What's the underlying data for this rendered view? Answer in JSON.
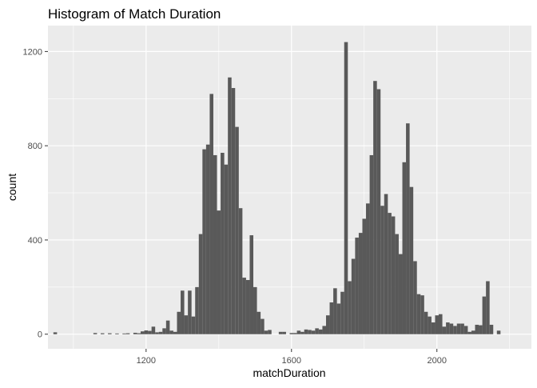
{
  "chart_data": {
    "type": "bar",
    "title": "Histogram of Match Duration",
    "xlabel": "matchDuration",
    "ylabel": "count",
    "xlim": [
      930,
      2260
    ],
    "ylim": [
      -62,
      1310
    ],
    "x_ticks": [
      1200,
      1600,
      2000
    ],
    "x_tick_labels": [
      "1200",
      "1600",
      "2000"
    ],
    "y_ticks": [
      0,
      400,
      800,
      1200
    ],
    "y_tick_labels": [
      "0",
      "400",
      "800",
      "1200"
    ],
    "grid": true,
    "bin_width": 10,
    "bar_color": "#595959",
    "panel_color": "#ebebeb",
    "bins": [
      [
        950,
        8
      ],
      [
        1060,
        5
      ],
      [
        1080,
        4
      ],
      [
        1100,
        4
      ],
      [
        1120,
        3
      ],
      [
        1140,
        3
      ],
      [
        1150,
        4
      ],
      [
        1170,
        6
      ],
      [
        1180,
        4
      ],
      [
        1190,
        12
      ],
      [
        1200,
        16
      ],
      [
        1210,
        14
      ],
      [
        1220,
        32
      ],
      [
        1230,
        8
      ],
      [
        1240,
        10
      ],
      [
        1250,
        25
      ],
      [
        1260,
        58
      ],
      [
        1270,
        15
      ],
      [
        1280,
        10
      ],
      [
        1290,
        95
      ],
      [
        1300,
        185
      ],
      [
        1310,
        80
      ],
      [
        1320,
        185
      ],
      [
        1330,
        75
      ],
      [
        1340,
        200
      ],
      [
        1350,
        425
      ],
      [
        1360,
        785
      ],
      [
        1370,
        805
      ],
      [
        1380,
        1020
      ],
      [
        1390,
        760
      ],
      [
        1400,
        525
      ],
      [
        1410,
        770
      ],
      [
        1420,
        720
      ],
      [
        1430,
        1090
      ],
      [
        1440,
        1045
      ],
      [
        1450,
        880
      ],
      [
        1460,
        535
      ],
      [
        1470,
        240
      ],
      [
        1480,
        230
      ],
      [
        1490,
        420
      ],
      [
        1500,
        200
      ],
      [
        1510,
        95
      ],
      [
        1520,
        65
      ],
      [
        1530,
        15
      ],
      [
        1540,
        18
      ],
      [
        1570,
        10
      ],
      [
        1580,
        10
      ],
      [
        1600,
        5
      ],
      [
        1610,
        5
      ],
      [
        1620,
        15
      ],
      [
        1630,
        10
      ],
      [
        1640,
        20
      ],
      [
        1650,
        18
      ],
      [
        1660,
        15
      ],
      [
        1670,
        25
      ],
      [
        1680,
        20
      ],
      [
        1690,
        35
      ],
      [
        1700,
        80
      ],
      [
        1710,
        135
      ],
      [
        1720,
        195
      ],
      [
        1730,
        130
      ],
      [
        1740,
        180
      ],
      [
        1750,
        1240
      ],
      [
        1760,
        225
      ],
      [
        1770,
        320
      ],
      [
        1780,
        410
      ],
      [
        1790,
        430
      ],
      [
        1800,
        490
      ],
      [
        1810,
        555
      ],
      [
        1820,
        760
      ],
      [
        1830,
        1075
      ],
      [
        1840,
        1040
      ],
      [
        1850,
        545
      ],
      [
        1860,
        595
      ],
      [
        1870,
        515
      ],
      [
        1880,
        500
      ],
      [
        1890,
        425
      ],
      [
        1900,
        340
      ],
      [
        1910,
        730
      ],
      [
        1920,
        895
      ],
      [
        1930,
        625
      ],
      [
        1940,
        310
      ],
      [
        1950,
        170
      ],
      [
        1960,
        165
      ],
      [
        1970,
        95
      ],
      [
        1980,
        75
      ],
      [
        1990,
        50
      ],
      [
        2000,
        80
      ],
      [
        2010,
        85
      ],
      [
        2020,
        32
      ],
      [
        2030,
        50
      ],
      [
        2040,
        45
      ],
      [
        2050,
        35
      ],
      [
        2060,
        45
      ],
      [
        2070,
        45
      ],
      [
        2080,
        35
      ],
      [
        2090,
        10
      ],
      [
        2100,
        15
      ],
      [
        2110,
        40
      ],
      [
        2120,
        38
      ],
      [
        2130,
        160
      ],
      [
        2140,
        225
      ],
      [
        2150,
        40
      ],
      [
        2170,
        15
      ]
    ]
  }
}
